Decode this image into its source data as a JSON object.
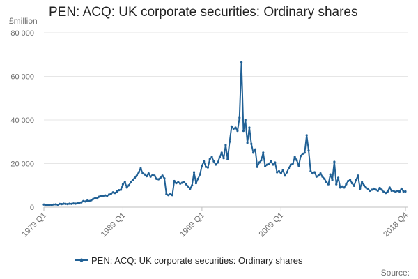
{
  "chart_data": {
    "type": "line",
    "title": "PEN: ACQ: UK corporate securities: Ordinary shares",
    "ylabel": "£million",
    "xlabel": "",
    "ylim": [
      0,
      80000
    ],
    "yticks": [
      "0",
      "20 000",
      "40 000",
      "60 000",
      "80 000"
    ],
    "ytick_values": [
      0,
      20000,
      40000,
      60000,
      80000
    ],
    "xticks": [
      "1979 Q1",
      "1989 Q1",
      "1999 Q1",
      "2009 Q1",
      "2018 Q4"
    ],
    "grid": "horizontal",
    "legend_position": "bottom",
    "source_label": "Source:",
    "color": "#206095",
    "series": [
      {
        "name": "PEN: ACQ: UK corporate securities: Ordinary shares",
        "start_year": 1979,
        "start_quarter": 1,
        "values": [
          1200,
          1000,
          900,
          1100,
          1000,
          1200,
          1300,
          1100,
          1500,
          1400,
          1600,
          1500,
          1400,
          1600,
          1500,
          1700,
          1600,
          1800,
          2000,
          2200,
          2800,
          2600,
          3000,
          2800,
          3200,
          3800,
          4200,
          4000,
          4800,
          5200,
          5000,
          5400,
          5200,
          5800,
          6200,
          6800,
          6500,
          7200,
          7800,
          8000,
          10500,
          11500,
          9000,
          10000,
          11500,
          12500,
          13500,
          14500,
          16000,
          17800,
          15500,
          15000,
          14200,
          15500,
          14000,
          14800,
          14500,
          13000,
          12800,
          13500,
          14500,
          13200,
          6000,
          5500,
          6000,
          5500,
          12000,
          11000,
          11500,
          10800,
          11200,
          11500,
          10500,
          9500,
          8500,
          10000,
          16000,
          11000,
          13000,
          15000,
          19000,
          21000,
          18500,
          18200,
          22000,
          23000,
          21000,
          19500,
          20500,
          23000,
          25000,
          22500,
          28500,
          22000,
          30000,
          37000,
          36000,
          36500,
          35000,
          41000,
          66500,
          35000,
          40000,
          29500,
          36500,
          29000,
          25000,
          26500,
          18500,
          20500,
          21500,
          25000,
          18800,
          19500,
          20000,
          21000,
          19500,
          20500,
          16000,
          16500,
          15500,
          17000,
          14500,
          16000,
          18000,
          19500,
          20000,
          23000,
          21500,
          19000,
          23500,
          24500,
          25000,
          33000,
          26000,
          16500,
          15500,
          16000,
          14000,
          14500,
          15500,
          14000,
          13000,
          11500,
          10500,
          15000,
          12500,
          20800,
          10500,
          13500,
          9000,
          9500,
          9000,
          10500,
          12000,
          12500,
          11000,
          9800,
          12500,
          14500,
          8500,
          11500,
          10000,
          9000,
          8500,
          7500,
          8000,
          8500,
          8000,
          7500,
          8800,
          8000,
          7000,
          6500,
          7200,
          9000,
          7500,
          7500,
          7000,
          7500,
          7200,
          8500,
          7200,
          7200
        ]
      }
    ]
  }
}
